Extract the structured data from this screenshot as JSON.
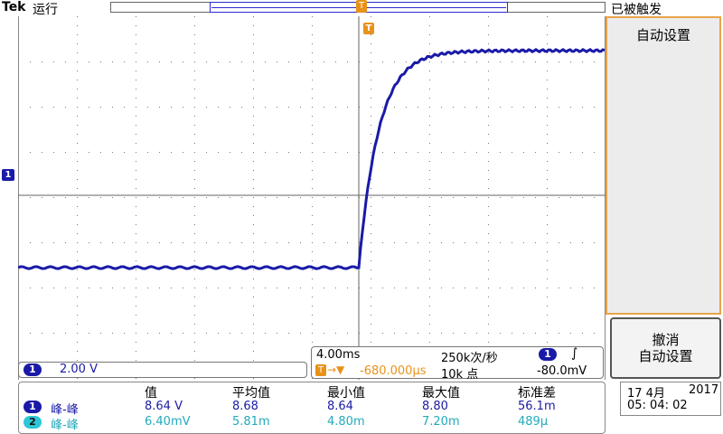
{
  "header": {
    "brand": "Tek",
    "run_state": "运行",
    "trigger_status": "已被触发"
  },
  "markers": {
    "channel1": "1",
    "trigger": "T"
  },
  "menu": {
    "auto_setup": "自动设置",
    "undo_line1": "撤消",
    "undo_line2": "自动设置"
  },
  "channel1": {
    "badge": "1",
    "scale": "2.00 V"
  },
  "timebase": {
    "scale": "4.00ms",
    "sample_rate": "250k次/秒",
    "trigger_source_badge": "1",
    "trigger_slope": "∫",
    "trigger_position_badge": "T",
    "trigger_position_arrow": "→▼",
    "trigger_position": "-680.000µs",
    "record_length": "10k 点",
    "trigger_level": "-80.0mV"
  },
  "measurements": {
    "headers": [
      "值",
      "平均值",
      "最小值",
      "最大值",
      "标准差"
    ],
    "rows": [
      {
        "badge": "1",
        "type": "峰-峰",
        "value": "8.64 V",
        "mean": "8.68",
        "min": "8.64",
        "max": "8.80",
        "std": "56.1m"
      },
      {
        "badge": "2",
        "type": "峰-峰",
        "value": "6.40mV",
        "mean": "5.81m",
        "min": "4.80m",
        "max": "7.20m",
        "std": "489µ"
      }
    ]
  },
  "datetime": {
    "date": "17 4月",
    "year": "2017",
    "time": "05: 04: 02"
  },
  "colors": {
    "trace": "#1a1aa8",
    "channel2": "#2ec6d6",
    "trigger": "#e8921a",
    "menu_border": "#e8a34a"
  },
  "waveform": {
    "description_values": {
      "low_level_div": -1.6,
      "high_level_div": 3.2,
      "rise_start_div": 0.0
    }
  }
}
